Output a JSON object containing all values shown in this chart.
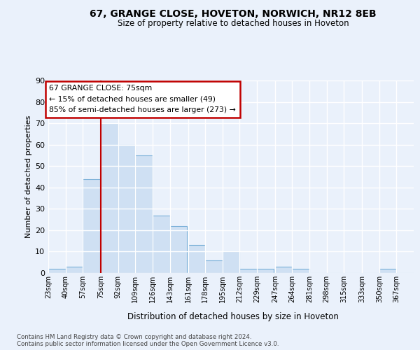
{
  "title1": "67, GRANGE CLOSE, HOVETON, NORWICH, NR12 8EB",
  "title2": "Size of property relative to detached houses in Hoveton",
  "xlabel": "Distribution of detached houses by size in Hoveton",
  "ylabel": "Number of detached properties",
  "footer1": "Contains HM Land Registry data © Crown copyright and database right 2024.",
  "footer2": "Contains public sector information licensed under the Open Government Licence v3.0.",
  "annotation_title": "67 GRANGE CLOSE: 75sqm",
  "annotation_line1": "← 15% of detached houses are smaller (49)",
  "annotation_line2": "85% of semi-detached houses are larger (273) →",
  "property_sqm": 75,
  "bin_starts": [
    23,
    40,
    57,
    75,
    92,
    109,
    126,
    143,
    161,
    178,
    195,
    212,
    229,
    247,
    264,
    281,
    298,
    315,
    333,
    350,
    367
  ],
  "bin_labels": [
    "23sqm",
    "40sqm",
    "57sqm",
    "75sqm",
    "92sqm",
    "109sqm",
    "126sqm",
    "143sqm",
    "161sqm",
    "178sqm",
    "195sqm",
    "212sqm",
    "229sqm",
    "247sqm",
    "264sqm",
    "281sqm",
    "298sqm",
    "315sqm",
    "333sqm",
    "350sqm",
    "367sqm"
  ],
  "heights": [
    2,
    3,
    44,
    70,
    60,
    55,
    27,
    22,
    13,
    6,
    10,
    2,
    2,
    3,
    2,
    0,
    0,
    0,
    0,
    2,
    0
  ],
  "bar_color": "#cfe0f3",
  "bar_edge_color": "#7ab0d8",
  "highlight_line_color": "#c00000",
  "annotation_box_color": "#c00000",
  "bg_color": "#eaf1fb",
  "grid_color": "#ffffff",
  "ylim": [
    0,
    90
  ],
  "yticks": [
    0,
    10,
    20,
    30,
    40,
    50,
    60,
    70,
    80,
    90
  ]
}
